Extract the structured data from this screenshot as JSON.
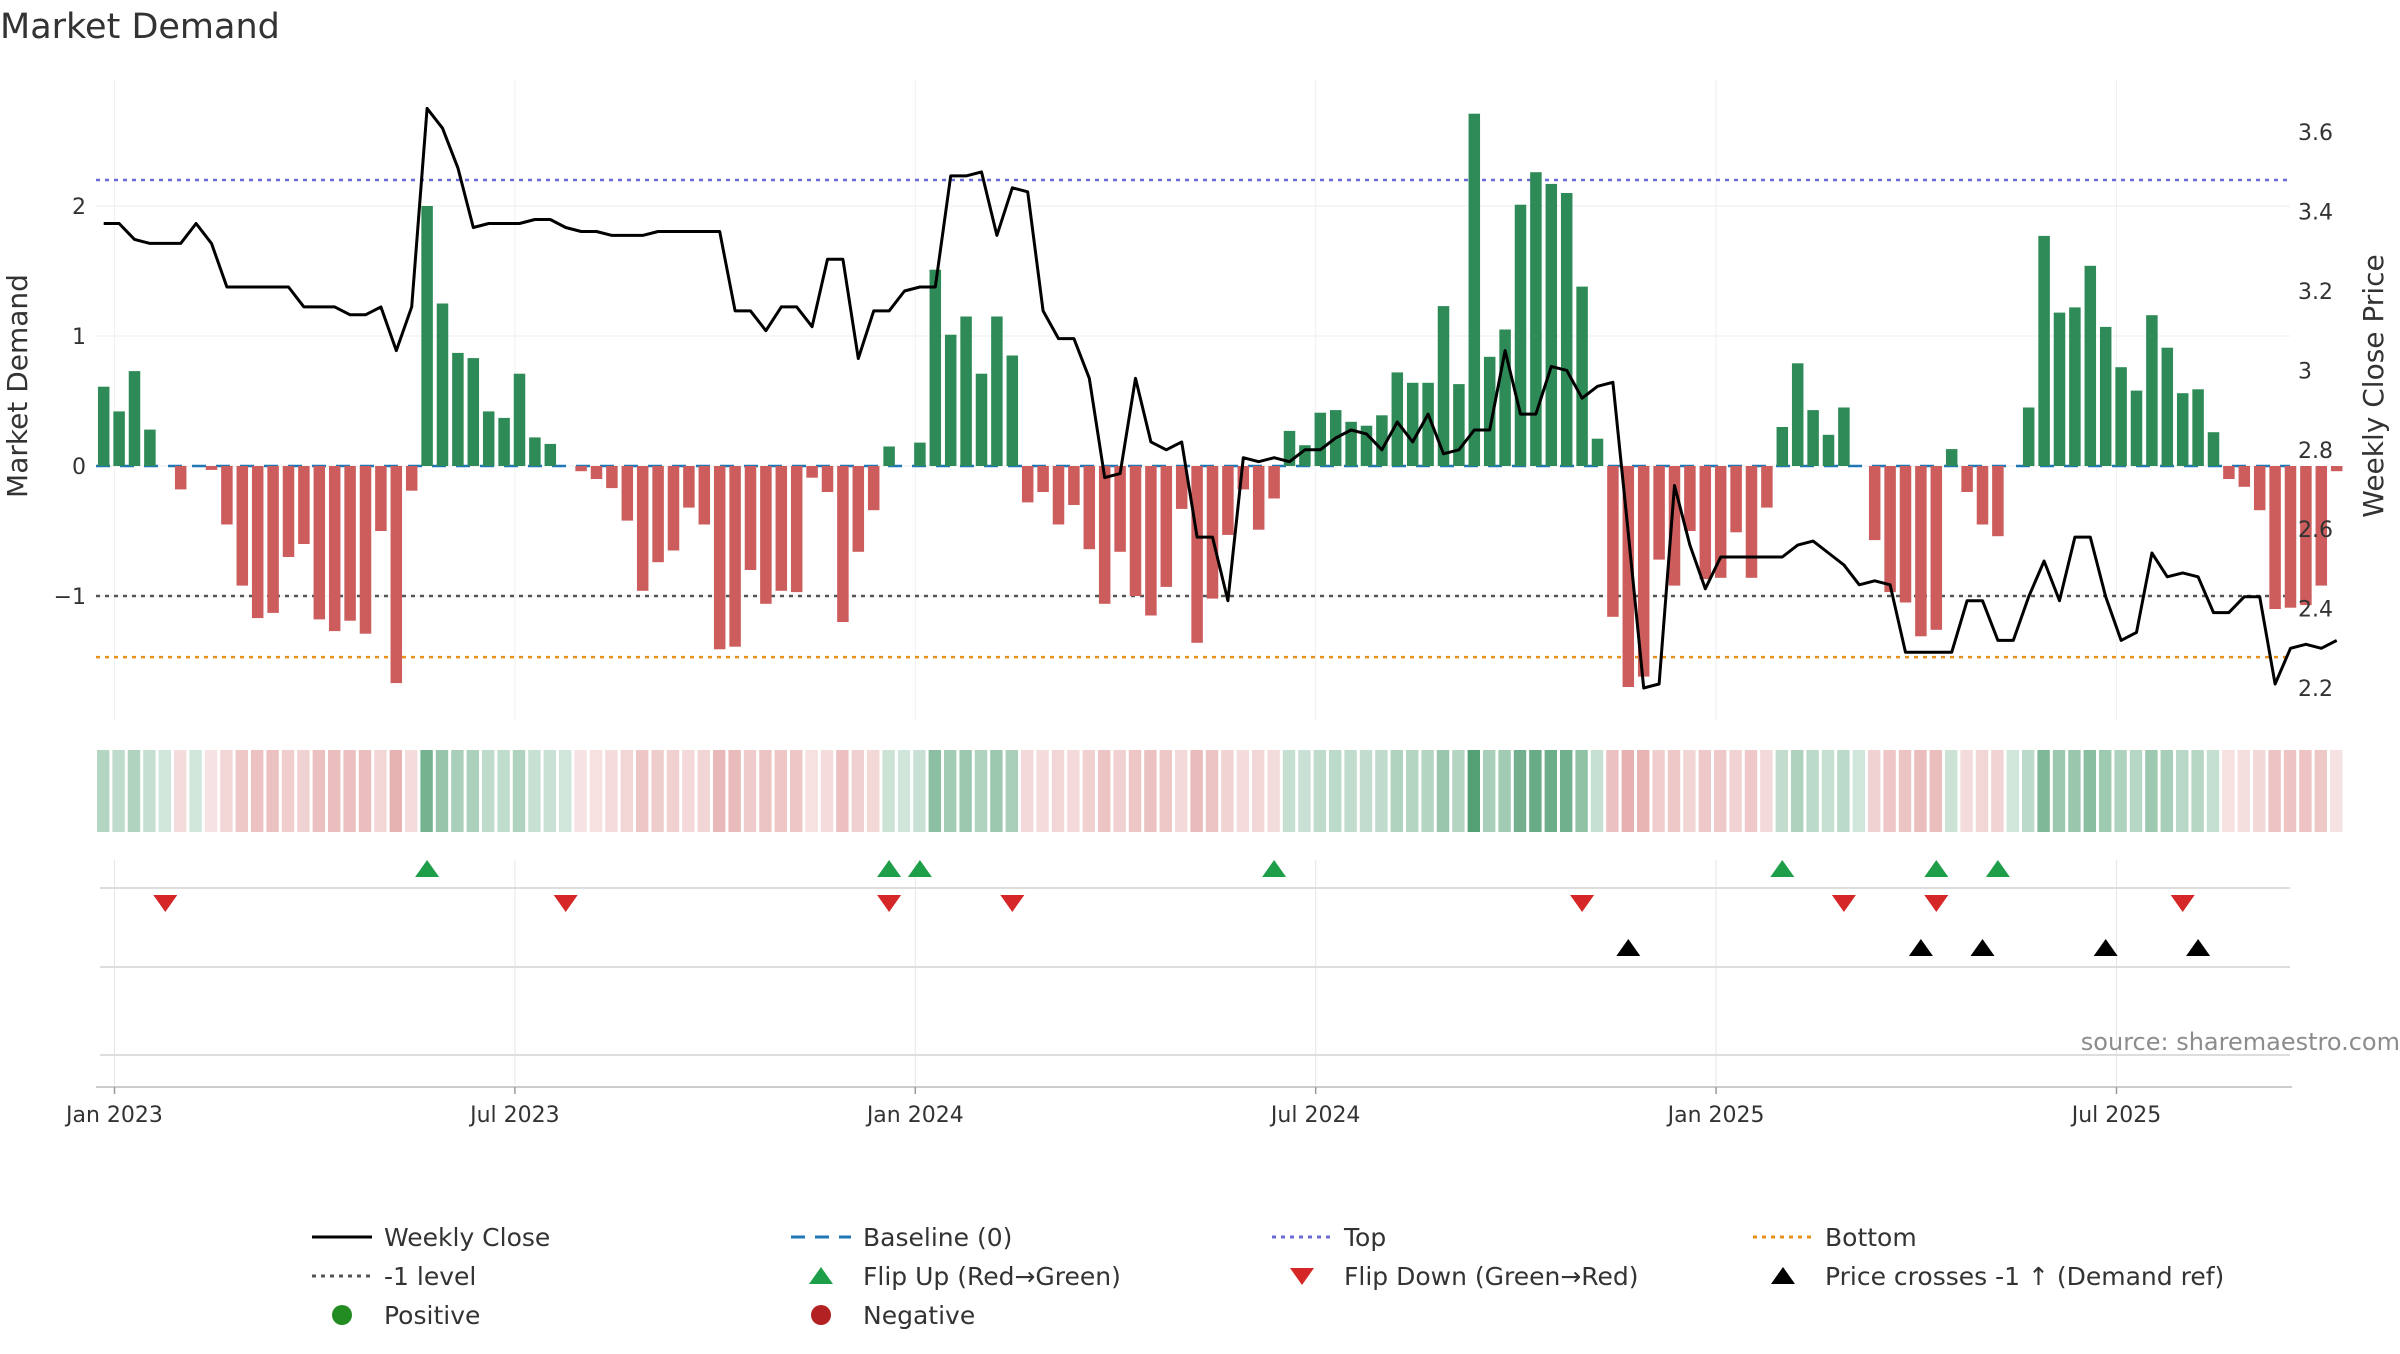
{
  "chart_data": {
    "type": "bar",
    "title": "Market Demand",
    "ylabel": "Market Demand",
    "y2label": "Weekly Close Price",
    "ylim": [
      -1.9,
      2.95
    ],
    "y2lim": [
      2.16,
      3.74
    ],
    "yticks": [
      -1,
      0,
      1,
      2
    ],
    "ytick_labels": [
      "−1",
      "0",
      "1",
      "2"
    ],
    "y2ticks": [
      2.2,
      2.4,
      2.6,
      2.8,
      3.0,
      3.2,
      3.4,
      3.6
    ],
    "y2tick_labels": [
      "2.2",
      "2.4",
      "2.6",
      "2.8",
      "3",
      "3.2",
      "3.4",
      "3.6"
    ],
    "xtick_labels": [
      "Jan 2023",
      "Jul 2023",
      "Jan 2024",
      "Jul 2024",
      "Jan 2025",
      "Jul 2025"
    ],
    "xtick_index": [
      0.7,
      26.7,
      52.7,
      78.7,
      104.7,
      130.7
    ],
    "reference_lines": {
      "top": 2.2,
      "minus_one": -1.0,
      "bottom": -1.47,
      "baseline": 0
    },
    "series": [
      {
        "name": "Market Demand",
        "values": [
          0.61,
          0.42,
          0.73,
          0.28,
          0,
          -0.18,
          0,
          -0.03,
          -0.45,
          -0.92,
          -1.17,
          -1.13,
          -0.7,
          -0.6,
          -1.18,
          -1.27,
          -1.19,
          -1.29,
          -0.5,
          -1.67,
          -0.19,
          2.0,
          1.25,
          0.87,
          0.83,
          0.42,
          0.37,
          0.71,
          0.22,
          0.17,
          0,
          -0.04,
          -0.1,
          -0.17,
          -0.42,
          -0.96,
          -0.74,
          -0.65,
          -0.32,
          -0.45,
          -1.41,
          -1.39,
          -0.8,
          -1.06,
          -0.96,
          -0.97,
          -0.09,
          -0.2,
          -1.2,
          -0.66,
          -0.34,
          0.15,
          0,
          0.18,
          1.51,
          1.01,
          1.15,
          0.71,
          1.15,
          0.85,
          -0.28,
          -0.2,
          -0.45,
          -0.3,
          -0.64,
          -1.06,
          -0.66,
          -1.0,
          -1.15,
          -0.93,
          -0.33,
          -1.36,
          -1.02,
          -0.53,
          -0.18,
          -0.49,
          -0.25,
          0.27,
          0.16,
          0.41,
          0.43,
          0.34,
          0.31,
          0.39,
          0.72,
          0.64,
          0.64,
          1.23,
          0.63,
          2.71,
          0.84,
          1.05,
          2.01,
          2.26,
          2.17,
          2.1,
          1.38,
          0.21,
          -1.16,
          -1.7,
          -1.62,
          -0.72,
          -0.92,
          -0.5,
          -0.87,
          -0.86,
          -0.51,
          -0.86,
          -0.32,
          0.3,
          0.79,
          0.43,
          0.24,
          0.45,
          0,
          -0.57,
          -0.97,
          -1.05,
          -1.31,
          -1.26,
          0.13,
          -0.2,
          -0.45,
          -0.54,
          0,
          0.45,
          1.77,
          1.18,
          1.22,
          1.54,
          1.07,
          0.76,
          0.58,
          1.16,
          0.91,
          0.56,
          0.59,
          0.26,
          -0.1,
          -0.16,
          -0.34,
          -1.1,
          -1.09,
          -1.07,
          -0.92,
          -0.04
        ]
      },
      {
        "name": "Weekly Close",
        "values": [
          3.37,
          3.37,
          3.33,
          3.32,
          3.32,
          3.32,
          3.37,
          3.32,
          3.21,
          3.21,
          3.21,
          3.21,
          3.21,
          3.16,
          3.16,
          3.16,
          3.14,
          3.14,
          3.16,
          3.05,
          3.16,
          3.66,
          3.61,
          3.51,
          3.36,
          3.37,
          3.37,
          3.37,
          3.38,
          3.38,
          3.36,
          3.35,
          3.35,
          3.34,
          3.34,
          3.34,
          3.35,
          3.35,
          3.35,
          3.35,
          3.35,
          3.15,
          3.15,
          3.1,
          3.16,
          3.16,
          3.11,
          3.28,
          3.28,
          3.03,
          3.15,
          3.15,
          3.2,
          3.21,
          3.21,
          3.49,
          3.49,
          3.5,
          3.34,
          3.46,
          3.45,
          3.15,
          3.08,
          3.08,
          2.98,
          2.73,
          2.74,
          2.98,
          2.82,
          2.8,
          2.82,
          2.58,
          2.58,
          2.42,
          2.78,
          2.77,
          2.78,
          2.77,
          2.8,
          2.8,
          2.83,
          2.85,
          2.84,
          2.8,
          2.87,
          2.82,
          2.89,
          2.79,
          2.8,
          2.85,
          2.85,
          3.05,
          2.89,
          2.89,
          3.01,
          3.0,
          2.93,
          2.96,
          2.97,
          2.59,
          2.2,
          2.21,
          2.71,
          2.56,
          2.45,
          2.53,
          2.53,
          2.53,
          2.53,
          2.53,
          2.56,
          2.57,
          2.54,
          2.51,
          2.46,
          2.47,
          2.46,
          2.29,
          2.29,
          2.29,
          2.29,
          2.42,
          2.42,
          2.32,
          2.32,
          2.43,
          2.52,
          2.42,
          2.58,
          2.58,
          2.43,
          2.32,
          2.34,
          2.54,
          2.48,
          2.49,
          2.48,
          2.39,
          2.39,
          2.43,
          2.43,
          2.21,
          2.3,
          2.31,
          2.3,
          2.32
        ]
      }
    ],
    "flip_up_index": [
      21,
      51,
      53,
      76,
      109,
      119,
      123
    ],
    "flip_down_index": [
      4,
      30,
      51,
      59,
      96,
      113,
      119,
      135
    ],
    "price_cross_index": [
      99,
      118,
      122,
      130,
      136
    ],
    "legend": [
      [
        "Weekly Close",
        "Baseline (0)",
        "Top",
        "Bottom"
      ],
      [
        "-1 level",
        "Flip Up (Red→Green)",
        "Flip Down (Green→Red)",
        "Price crosses -1 ↑ (Demand ref)"
      ],
      [
        "Positive",
        "Negative"
      ]
    ],
    "legend_position": "bottom",
    "source": "source: sharemaestro.com",
    "colors": {
      "positive": "#2e8b57",
      "negative": "#cd5c5c",
      "close": "#000000",
      "baseline": "#1f77b4",
      "top": "#6b6bd6",
      "bottom": "#e8901a",
      "minus_one": "#555555",
      "flip_up": "#1f9e4a",
      "flip_down": "#d62728",
      "cross": "#000000",
      "positive_dot": "#228b22",
      "negative_dot": "#b22222"
    }
  }
}
